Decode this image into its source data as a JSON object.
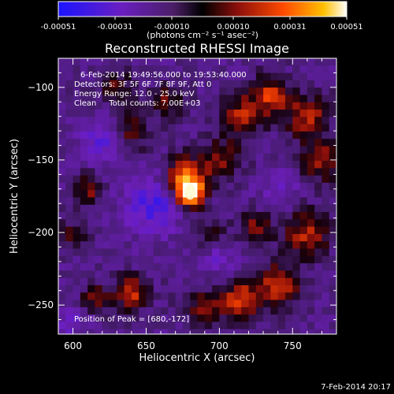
{
  "colorbar": {
    "ticks": [
      "-0.00051",
      "-0.00031",
      "-0.00010",
      "0.00010",
      "0.00031",
      "0.00051"
    ],
    "units_label": "(photons cm⁻² s⁻¹ asec⁻²)"
  },
  "chart_data": {
    "type": "heatmap",
    "title": "Reconstructed RHESSI Image",
    "xlabel": "Heliocentric X (arcsec)",
    "ylabel": "Heliocentric Y (arcsec)",
    "xlim": [
      590,
      780
    ],
    "ylim": [
      -270,
      -80
    ],
    "xticks": [
      600,
      650,
      700,
      750
    ],
    "yticks": [
      -100,
      -150,
      -200,
      -250
    ],
    "xtick_labels": [
      "600",
      "650",
      "700",
      "750"
    ],
    "ytick_labels": [
      "−100",
      "−150",
      "−200",
      "−250"
    ],
    "colorscale": [
      "#1b14ff",
      "#7c1fb6",
      "#5a1e78",
      "#000000",
      "#b5120e",
      "#ff6a00",
      "#ffffff"
    ],
    "value_range": [
      -0.00051,
      0.00051
    ],
    "peak": {
      "x": 680,
      "y": -172
    },
    "annotations": [
      "6-Feb-2014 19:49:56.000 to 19:53:40.000",
      "Detectors: 3F 5F 6F 7F 8F 9F, Att 0",
      "Energy Range: 12.0 - 25.0 keV",
      "Clean     Total counts: 7.00E+03",
      "Position of Peak = [680,-172]"
    ]
  },
  "footer": {
    "timestamp": "7-Feb-2014 20:17"
  }
}
